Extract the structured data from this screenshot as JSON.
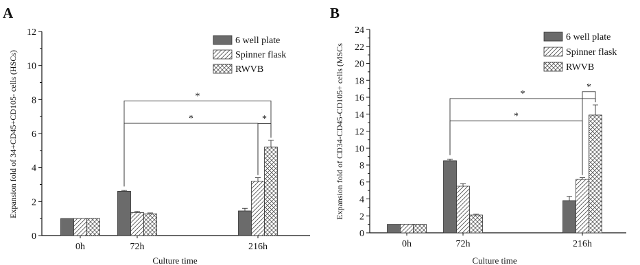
{
  "chart_data": [
    {
      "panel_label": "A",
      "type": "bar",
      "categories": [
        "0h",
        "72h",
        "216h"
      ],
      "xlabel": "Culture time",
      "ylabel": "Expansion fold of 34+CD45+CD105- cells (HSCs)",
      "ylim": [
        0,
        12
      ],
      "yticks": [
        0,
        2,
        4,
        6,
        8,
        10,
        12
      ],
      "grid": false,
      "legend_position": "top-right",
      "series": [
        {
          "name": "6 well plate",
          "pattern": "solid",
          "values": [
            1.0,
            2.6,
            1.45
          ],
          "errors": [
            0,
            0.05,
            0.15
          ]
        },
        {
          "name": "Spinner flask",
          "pattern": "hatch",
          "values": [
            1.0,
            1.35,
            3.2
          ],
          "errors": [
            0,
            0.07,
            0.2
          ]
        },
        {
          "name": "RWVB",
          "pattern": "crosshatch",
          "values": [
            1.0,
            1.28,
            5.2
          ],
          "errors": [
            0,
            0.05,
            0.4
          ]
        }
      ],
      "significance": [
        {
          "from": [
            1,
            0
          ],
          "to": [
            2,
            2
          ],
          "label": "*"
        },
        {
          "from": [
            1,
            0
          ],
          "to": [
            2,
            1
          ],
          "label": "*"
        },
        {
          "from": [
            2,
            1
          ],
          "to": [
            2,
            2
          ],
          "label": "*"
        }
      ]
    },
    {
      "panel_label": "B",
      "type": "bar",
      "categories": [
        "0h",
        "72h",
        "216h"
      ],
      "xlabel": "Culture time",
      "ylabel": "Expansion fold of CD34-CD45-CD105+ cells (MSCs",
      "ylim": [
        0,
        24
      ],
      "yticks": [
        0,
        2,
        4,
        6,
        8,
        10,
        12,
        14,
        16,
        18,
        20,
        22,
        24
      ],
      "grid": false,
      "legend_position": "top-right",
      "series": [
        {
          "name": "6 well plate",
          "pattern": "solid",
          "values": [
            1.0,
            8.5,
            3.8
          ],
          "errors": [
            0,
            0.2,
            0.5
          ]
        },
        {
          "name": "Spinner flask",
          "pattern": "hatch",
          "values": [
            1.0,
            5.5,
            6.3
          ],
          "errors": [
            0,
            0.3,
            0.2
          ]
        },
        {
          "name": "RWVB",
          "pattern": "crosshatch",
          "values": [
            1.0,
            2.1,
            13.9
          ],
          "errors": [
            0,
            0.1,
            1.2
          ]
        }
      ],
      "significance": [
        {
          "from": [
            1,
            0
          ],
          "to": [
            2,
            2
          ],
          "label": "*"
        },
        {
          "from": [
            1,
            0
          ],
          "to": [
            2,
            1
          ],
          "label": "*"
        },
        {
          "from": [
            2,
            1
          ],
          "to": [
            2,
            2
          ],
          "label": "*"
        }
      ]
    }
  ]
}
